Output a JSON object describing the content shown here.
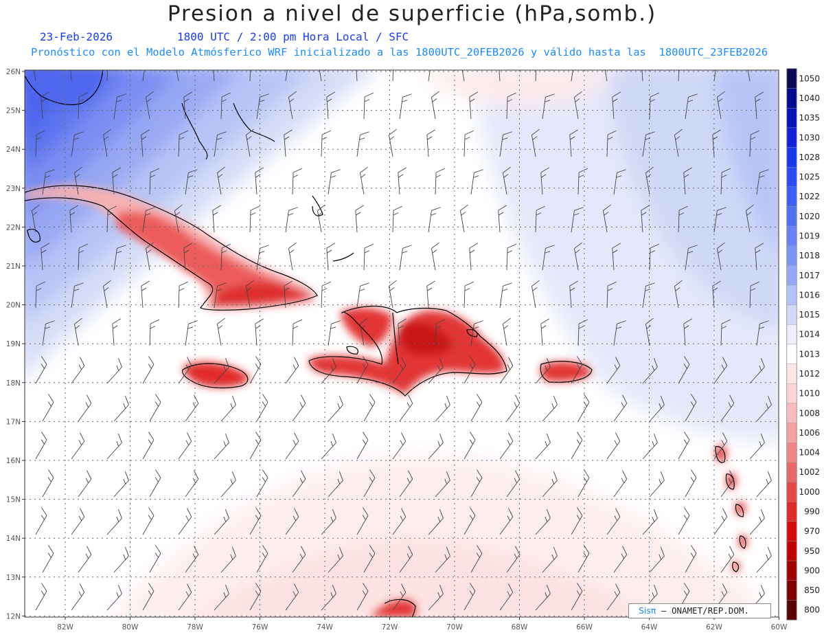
{
  "title": "Presion a nivel de superficie (hPa,somb.)",
  "date": "23-Feb-2026",
  "time_line": "1800 UTC / 2:00 pm Hora Local / SFC",
  "subtitle": "Pronóstico con el Modelo Atmósferico WRF inicializado a las 1800UTC_20FEB2026 y válido hasta las  1800UTC_23FEB2026",
  "credit": {
    "brand": "Sisπ",
    "org": " – ONAMET/REP.DOM."
  },
  "lat_labels": [
    "26N",
    "25N",
    "24N",
    "23N",
    "22N",
    "21N",
    "20N",
    "19N",
    "18N",
    "17N",
    "16N",
    "15N",
    "14N",
    "13N",
    "12N"
  ],
  "lon_labels": [
    "82W",
    "80W",
    "78W",
    "76W",
    "74W",
    "72W",
    "70W",
    "68W",
    "66W",
    "64W",
    "62W",
    "60W"
  ],
  "colorbar": {
    "levels": [
      "1050",
      "1040",
      "1035",
      "1030",
      "1028",
      "1025",
      "1022",
      "1020",
      "1019",
      "1018",
      "1017",
      "1016",
      "1015",
      "1014",
      "1013",
      "1012",
      "1010",
      "1008",
      "1006",
      "1004",
      "1002",
      "1000",
      "990",
      "970",
      "950",
      "900",
      "850",
      "800"
    ],
    "colors": [
      "#0a0a55",
      "#000a90",
      "#0012b8",
      "#1020d8",
      "#1838f0",
      "#2a4cf4",
      "#3c5ef6",
      "#5070f6",
      "#6682f6",
      "#7c94f7",
      "#96a8f8",
      "#b4c2fa",
      "#d2daf7",
      "#eceff9",
      "#ffffff",
      "#fde7e7",
      "#fcd4d4",
      "#f8bcbc",
      "#f4a2a2",
      "#f08686",
      "#ea6868",
      "#e44848",
      "#de2a2a",
      "#d40c0c",
      "#c00000",
      "#a00000",
      "#800000",
      "#5a0000"
    ]
  }
}
